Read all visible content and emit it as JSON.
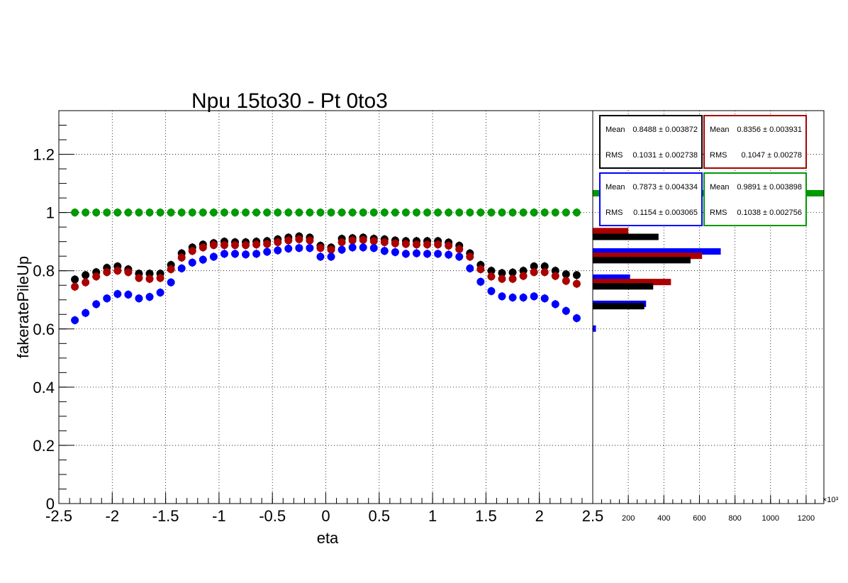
{
  "chart_data": {
    "type": "scatter",
    "title": "Npu 15to30 - Pt 0to3",
    "xlabel": "eta",
    "ylabel": "fakeratePileUp",
    "xlim": [
      -2.5,
      2.5
    ],
    "ylim": [
      0,
      1.35
    ],
    "grid": true,
    "x": [
      -2.35,
      -2.25,
      -2.15,
      -2.05,
      -1.95,
      -1.85,
      -1.75,
      -1.65,
      -1.55,
      -1.45,
      -1.35,
      -1.25,
      -1.15,
      -1.05,
      -0.95,
      -0.85,
      -0.75,
      -0.65,
      -0.55,
      -0.45,
      -0.35,
      -0.25,
      -0.15,
      -0.05,
      0.05,
      0.15,
      0.25,
      0.35,
      0.45,
      0.55,
      0.65,
      0.75,
      0.85,
      0.95,
      1.05,
      1.15,
      1.25,
      1.35,
      1.45,
      1.55,
      1.65,
      1.75,
      1.85,
      1.95,
      2.05,
      2.15,
      2.25,
      2.35
    ],
    "series": [
      {
        "color": "#000000",
        "values": [
          0.77,
          0.785,
          0.795,
          0.81,
          0.815,
          0.805,
          0.79,
          0.79,
          0.79,
          0.82,
          0.86,
          0.88,
          0.89,
          0.895,
          0.9,
          0.898,
          0.898,
          0.9,
          0.902,
          0.908,
          0.914,
          0.918,
          0.914,
          0.886,
          0.88,
          0.91,
          0.912,
          0.914,
          0.91,
          0.908,
          0.904,
          0.902,
          0.902,
          0.902,
          0.902,
          0.897,
          0.886,
          0.86,
          0.82,
          0.8,
          0.792,
          0.794,
          0.8,
          0.815,
          0.815,
          0.8,
          0.788,
          0.785
        ]
      },
      {
        "color": "#aa0000",
        "values": [
          0.745,
          0.76,
          0.78,
          0.795,
          0.8,
          0.795,
          0.775,
          0.772,
          0.775,
          0.805,
          0.845,
          0.868,
          0.88,
          0.888,
          0.888,
          0.888,
          0.888,
          0.89,
          0.892,
          0.898,
          0.904,
          0.908,
          0.904,
          0.878,
          0.872,
          0.898,
          0.904,
          0.906,
          0.902,
          0.898,
          0.894,
          0.892,
          0.89,
          0.89,
          0.89,
          0.886,
          0.874,
          0.848,
          0.805,
          0.78,
          0.772,
          0.772,
          0.782,
          0.795,
          0.795,
          0.782,
          0.765,
          0.755
        ]
      },
      {
        "color": "#0000ff",
        "values": [
          0.63,
          0.655,
          0.685,
          0.705,
          0.72,
          0.718,
          0.705,
          0.71,
          0.725,
          0.76,
          0.808,
          0.828,
          0.838,
          0.848,
          0.858,
          0.858,
          0.856,
          0.858,
          0.865,
          0.87,
          0.876,
          0.878,
          0.878,
          0.848,
          0.848,
          0.872,
          0.88,
          0.88,
          0.878,
          0.868,
          0.864,
          0.858,
          0.86,
          0.858,
          0.858,
          0.855,
          0.848,
          0.808,
          0.762,
          0.73,
          0.712,
          0.708,
          0.708,
          0.712,
          0.705,
          0.685,
          0.662,
          0.637
        ]
      },
      {
        "color": "#009900",
        "values": [
          1,
          1,
          1,
          1,
          1,
          1,
          1,
          1,
          1,
          1,
          1,
          1,
          1,
          1,
          1,
          1,
          1,
          1,
          1,
          1,
          1,
          1,
          1,
          1,
          1,
          1,
          1,
          1,
          1,
          1,
          1,
          1,
          1,
          1,
          1,
          1,
          1,
          1,
          1,
          1,
          1,
          1,
          1,
          1,
          1,
          1,
          1,
          1
        ]
      }
    ],
    "x_ticks": [
      "-2.5",
      "-2",
      "-1.5",
      "-1",
      "-0.5",
      "0",
      "0.5",
      "1",
      "1.5",
      "2",
      "2.5"
    ],
    "y_ticks": [
      "0",
      "0.2",
      "0.4",
      "0.6",
      "0.8",
      "1",
      "1.2"
    ],
    "side_panel": {
      "type": "bar-horizontal",
      "xlim": [
        0,
        1300
      ],
      "x_ticks": [
        "200",
        "400",
        "600",
        "800",
        "1000",
        "1200"
      ],
      "x_exponent": "×10³",
      "bars": [
        {
          "color": "#aa0000",
          "y": 0.935,
          "value": 200
        },
        {
          "color": "#000000",
          "y": 0.915,
          "value": 370
        },
        {
          "color": "#0000ff",
          "y": 0.865,
          "value": 720
        },
        {
          "color": "#aa0000",
          "y": 0.85,
          "value": 615
        },
        {
          "color": "#000000",
          "y": 0.835,
          "value": 550
        },
        {
          "color": "#0000ff",
          "y": 0.775,
          "value": 210
        },
        {
          "color": "#aa0000",
          "y": 0.76,
          "value": 440
        },
        {
          "color": "#000000",
          "y": 0.745,
          "value": 340
        },
        {
          "color": "#0000ff",
          "y": 0.685,
          "value": 300
        },
        {
          "color": "#000000",
          "y": 0.677,
          "value": 290
        },
        {
          "color": "#0000ff",
          "y": 0.6,
          "value": 18
        },
        {
          "color": "#009900",
          "y": 1.065,
          "value": 1300
        }
      ]
    },
    "stats": [
      {
        "color": "#000000",
        "mean_label": "Mean",
        "mean": "0.8488 ± 0.003872",
        "rms_label": "RMS",
        "rms": "0.1031 ± 0.002738"
      },
      {
        "color": "#aa0000",
        "mean_label": "Mean",
        "mean": "0.8356 ± 0.003931",
        "rms_label": "RMS",
        "rms": "0.1047 ± 0.00278"
      },
      {
        "color": "#0000ff",
        "mean_label": "Mean",
        "mean": "0.7873 ± 0.004334",
        "rms_label": "RMS",
        "rms": "0.1154 ± 0.003065"
      },
      {
        "color": "#009900",
        "mean_label": "Mean",
        "mean": "0.9891 ± 0.003898",
        "rms_label": "RMS",
        "rms": "0.1038 ± 0.002756"
      }
    ]
  }
}
